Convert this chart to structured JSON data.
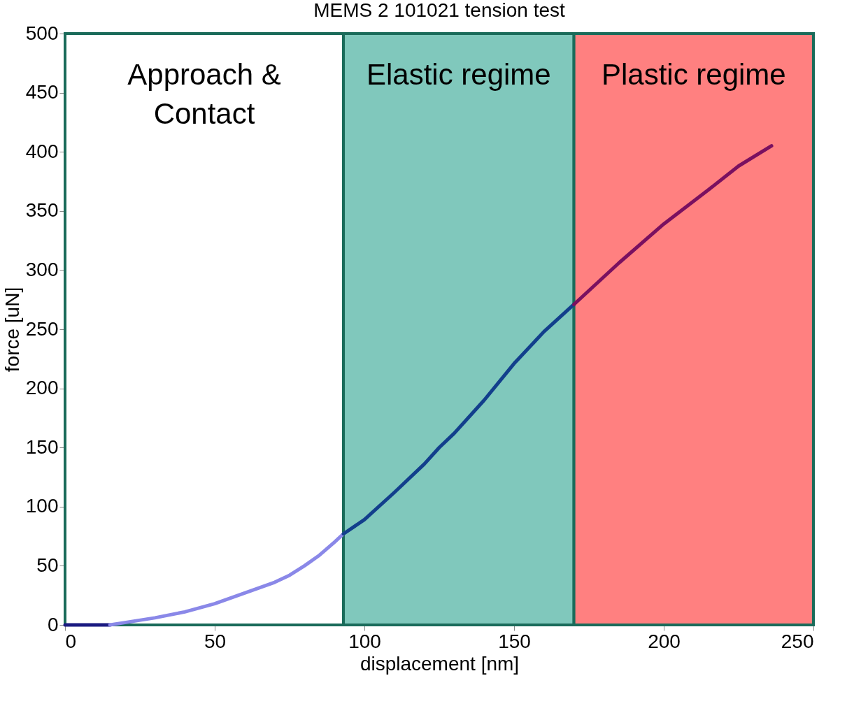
{
  "chart_data": {
    "type": "line",
    "title": "MEMS 2 101021 tension test",
    "xlabel": "displacement [nm]",
    "ylabel": "force [uN]",
    "xlim": [
      0,
      250
    ],
    "xticks": [
      0,
      50,
      100,
      150,
      200,
      250
    ],
    "ylim": [
      0,
      500
    ],
    "yticks": [
      0,
      50,
      100,
      150,
      200,
      250,
      300,
      350,
      400,
      450,
      500
    ],
    "legend": false,
    "line_style": "solid",
    "bands": [
      {
        "axis": "x",
        "from": 0,
        "to": 93,
        "label": "Approach &\nContact",
        "color": "#ffffff"
      },
      {
        "axis": "x",
        "from": 93,
        "to": 170,
        "label": "Elastic regime",
        "color": "#80c8bc"
      },
      {
        "axis": "x",
        "from": 170,
        "to": 250,
        "label": "Plastic  regime",
        "color": "#ff8080"
      }
    ],
    "series": [
      {
        "color": "#1a1a80",
        "x": [
          0,
          5,
          10,
          15
        ],
        "values": [
          0,
          0,
          0,
          0
        ]
      },
      {
        "color": "#8a88e8",
        "x": [
          15,
          20,
          30,
          40,
          50,
          60,
          70,
          75,
          80,
          85,
          90,
          93
        ],
        "values": [
          0,
          2,
          6,
          11,
          18,
          27,
          36,
          42,
          50,
          59,
          70,
          77
        ]
      },
      {
        "color": "#123f8c",
        "x": [
          93,
          100,
          110,
          120,
          125,
          130,
          140,
          150,
          160,
          170
        ],
        "values": [
          77,
          89,
          112,
          136,
          150,
          162,
          190,
          221,
          248,
          271
        ]
      },
      {
        "color": "#7a1060",
        "x": [
          170,
          185,
          200,
          215,
          225,
          236
        ],
        "values": [
          271,
          306,
          339,
          368,
          388,
          405
        ]
      }
    ]
  }
}
